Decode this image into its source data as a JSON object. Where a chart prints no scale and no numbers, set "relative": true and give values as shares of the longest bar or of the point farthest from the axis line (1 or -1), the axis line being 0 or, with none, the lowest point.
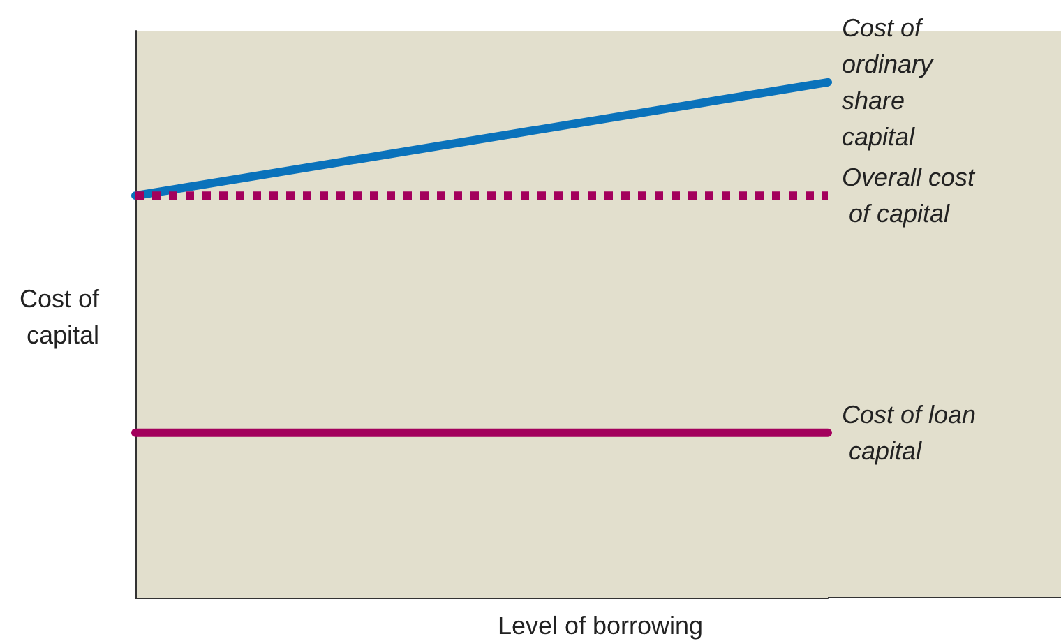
{
  "chart_data": {
    "type": "line",
    "relative": true,
    "xlabel": "Level of borrowing",
    "ylabel": "Cost of capital",
    "categories": [
      null,
      null
    ],
    "legend": false,
    "grid": false,
    "marker": "none",
    "series": [
      {
        "name": "Cost of ordinary share capital",
        "color": "#0a72bb",
        "values": [
          0.78,
          1
        ],
        "line_style": "solid"
      },
      {
        "name": "Overall cost of capital",
        "color": "#a3005c",
        "values": [
          0.78,
          0.78
        ],
        "line_style": "dotted"
      },
      {
        "name": "Cost of loan capital",
        "color": "#a3005c",
        "values": [
          0.32,
          0.32
        ],
        "line_style": "solid"
      }
    ]
  }
}
